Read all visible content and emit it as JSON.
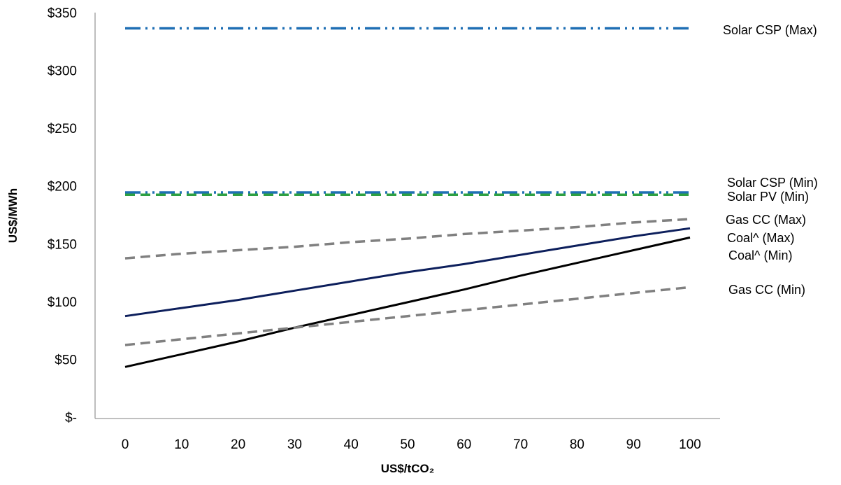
{
  "chart_data": {
    "type": "line",
    "title": "",
    "xlabel": "US$/tCO₂",
    "ylabel": "US$/MWh",
    "x": [
      0,
      10,
      20,
      30,
      40,
      50,
      60,
      70,
      80,
      90,
      100
    ],
    "x_tick_labels": [
      "0",
      "10",
      "20",
      "30",
      "40",
      "50",
      "60",
      "70",
      "80",
      "90",
      "100"
    ],
    "y_ticks": [
      0,
      50,
      100,
      150,
      200,
      250,
      300,
      350
    ],
    "y_tick_labels": [
      "$-",
      "$50",
      "$100",
      "$150",
      "$200",
      "$250",
      "$300",
      "$350"
    ],
    "ylim": [
      0,
      350
    ],
    "grid": false,
    "legend": "none (series labelled directly at right end of lines)",
    "series": [
      {
        "name": "Solar CSP (Max)",
        "color": "#1F6FB4",
        "style": "dash-dot-dot",
        "values": [
          337,
          337,
          337,
          337,
          337,
          337,
          337,
          337,
          337,
          337,
          337
        ]
      },
      {
        "name": "Solar CSP (Min)",
        "color": "#1F6FB4",
        "style": "dash-dot-dot",
        "values": [
          195,
          195,
          195,
          195,
          195,
          195,
          195,
          195,
          195,
          195,
          195
        ]
      },
      {
        "name": "Solar PV (Min)",
        "color": "#2EA043",
        "style": "dashed",
        "values": [
          193,
          193,
          193,
          193,
          193,
          193,
          193,
          193,
          193,
          193,
          193
        ]
      },
      {
        "name": "Gas CC (Max)",
        "color": "#808080",
        "style": "dashed",
        "values": [
          138,
          142,
          145,
          148,
          152,
          155,
          159,
          162,
          165,
          169,
          172
        ]
      },
      {
        "name": "Coal^ (Max)",
        "color": "#0D1F5C",
        "style": "solid",
        "values": [
          88,
          95,
          102,
          110,
          118,
          126,
          133,
          141,
          149,
          157,
          164
        ]
      },
      {
        "name": "Coal^ (Min)",
        "color": "#000000",
        "style": "solid",
        "values": [
          44,
          55,
          66,
          78,
          89,
          100,
          111,
          123,
          134,
          145,
          156
        ]
      },
      {
        "name": "Gas CC (Min)",
        "color": "#808080",
        "style": "dashed",
        "values": [
          63,
          68,
          73,
          78,
          83,
          88,
          93,
          98,
          103,
          108,
          113
        ]
      }
    ]
  }
}
